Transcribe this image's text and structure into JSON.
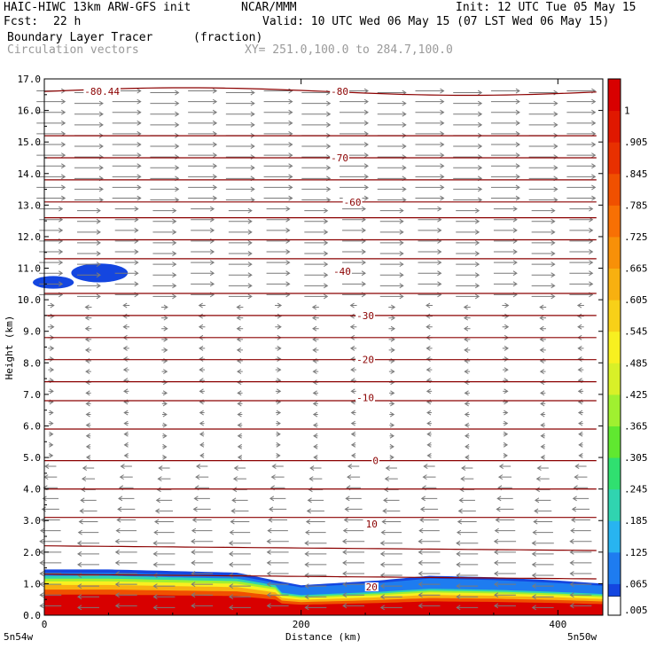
{
  "header": {
    "title": "HAIC-HIWC 13km ARW-GFS init",
    "org": "NCAR/MMM",
    "init": "Init: 12 UTC Tue 05 May 15",
    "fcst_label": "Fcst:",
    "fcst_value": "22 h",
    "valid": "Valid: 10 UTC Wed 06 May 15 (07 LST Wed 06 May 15)",
    "field": "Boundary Layer Tracer",
    "units": "(fraction)",
    "vectors": "Circulation vectors",
    "xy": "XY= 251.0,100.0 to 284.7,100.0"
  },
  "chart_data": {
    "type": "heatmap",
    "xlabel": "Distance (km)",
    "ylabel": "Height (km)",
    "xlim": [
      0,
      435
    ],
    "ylim": [
      0,
      17
    ],
    "x_ticks": [
      0,
      200,
      400
    ],
    "y_ticks": [
      0.0,
      1.0,
      2.0,
      3.0,
      4.0,
      5.0,
      6.0,
      7.0,
      8.0,
      9.0,
      10.0,
      11.0,
      12.0,
      13.0,
      14.0,
      15.0,
      16.0,
      17.0
    ],
    "x_start_label": "5n54w",
    "x_end_label": "5n50w",
    "colorbar_labels": [
      ".005",
      ".065",
      ".125",
      ".185",
      ".245",
      ".305",
      ".365",
      ".425",
      ".485",
      ".545",
      ".605",
      ".665",
      ".725",
      ".785",
      ".845",
      ".905",
      "1"
    ],
    "colorbar_colors": [
      "#1446e0",
      "#1e7cf0",
      "#28b4f0",
      "#30d4b0",
      "#30e070",
      "#60e830",
      "#a0f030",
      "#d8f028",
      "#f8f020",
      "#f8d018",
      "#f8b010",
      "#f89008",
      "#f87004",
      "#f05000",
      "#e83000",
      "#e01800",
      "#d80000"
    ],
    "contour_labels": [
      {
        "text": "-80.44",
        "x": 45,
        "y": 16.6
      },
      {
        "text": "-80",
        "x": 230,
        "y": 16.6
      },
      {
        "text": "-70",
        "x": 230,
        "y": 14.5
      },
      {
        "text": "-60",
        "x": 240,
        "y": 13.1
      },
      {
        "text": "-40",
        "x": 232,
        "y": 10.9
      },
      {
        "text": "-30",
        "x": 250,
        "y": 9.5
      },
      {
        "text": "-20",
        "x": 250,
        "y": 8.1
      },
      {
        "text": "-10",
        "x": 250,
        "y": 6.9
      },
      {
        "text": "0",
        "x": 258,
        "y": 4.9
      },
      {
        "text": "10",
        "x": 255,
        "y": 2.9
      },
      {
        "text": "20",
        "x": 255,
        "y": 0.9
      }
    ],
    "contour_levels_km": [
      16.6,
      15.2,
      14.5,
      13.8,
      13.1,
      12.6,
      11.9,
      11.3,
      10.2,
      9.5,
      8.8,
      8.1,
      7.4,
      6.8,
      5.9,
      4.9,
      4.0,
      3.1,
      2.2,
      1.3
    ],
    "wind_upper_top_km": 10.0,
    "wind_lower_top_km": 4.8,
    "tracer_top_km": {
      "x": [
        0,
        50,
        100,
        150,
        180,
        200,
        260,
        300,
        350,
        400,
        435
      ],
      "top": [
        1.45,
        1.45,
        1.4,
        1.35,
        1.1,
        0.95,
        1.1,
        1.25,
        1.2,
        1.1,
        1.0
      ]
    },
    "upper_blobs": [
      {
        "x_center": 43,
        "y_center": 10.85,
        "x_radius": 22,
        "y_radius": 0.3
      },
      {
        "x_center": 7,
        "y_center": 10.55,
        "x_radius": 16,
        "y_radius": 0.2
      }
    ]
  }
}
